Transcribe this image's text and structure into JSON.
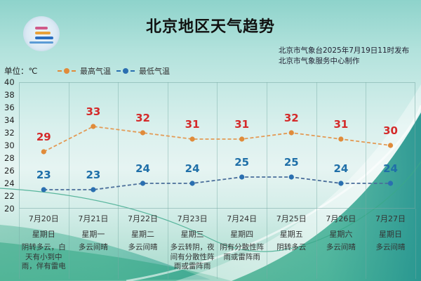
{
  "header": {
    "title": "北京地区天气趋势",
    "issuer_line1": "北京市气象台2025年7月19日11时发布",
    "issuer_line2": "北京市气象服务中心制作",
    "logo": "meteorological-service-logo"
  },
  "chart_meta": {
    "unit_label": "单位：℃",
    "legend": [
      {
        "name": "最高气温",
        "color": "#e08b3a"
      },
      {
        "name": "最低气温",
        "color": "#2a6fb0"
      }
    ],
    "y_ticks": [
      "40",
      "38",
      "36",
      "34",
      "32",
      "30",
      "28",
      "26",
      "24",
      "22",
      "20"
    ]
  },
  "days": [
    {
      "date": "7月20日",
      "weekday": "星期日",
      "weather": "阴转多云，白天有小到中雨，伴有雷电",
      "high": "29",
      "low": "23"
    },
    {
      "date": "7月21日",
      "weekday": "星期一",
      "weather": "多云间晴",
      "high": "33",
      "low": "23"
    },
    {
      "date": "7月22日",
      "weekday": "星期二",
      "weather": "多云间晴",
      "high": "32",
      "low": "24"
    },
    {
      "date": "7月23日",
      "weekday": "星期三",
      "weather": "多云转阴，夜间有分散性阵雨或雷阵雨",
      "high": "31",
      "low": "24"
    },
    {
      "date": "7月24日",
      "weekday": "星期四",
      "weather": "阴有分散性阵雨或雷阵雨",
      "high": "31",
      "low": "25"
    },
    {
      "date": "7月25日",
      "weekday": "星期五",
      "weather": "阴转多云",
      "high": "32",
      "low": "25"
    },
    {
      "date": "7月26日",
      "weekday": "星期六",
      "weather": "多云间晴",
      "high": "31",
      "low": "24"
    },
    {
      "date": "7月27日",
      "weekday": "星期日",
      "weather": "多云间晴",
      "high": "30",
      "low": "24"
    }
  ],
  "chart_data": {
    "type": "line",
    "title": "北京地区天气趋势",
    "categories": [
      "7月20日",
      "7月21日",
      "7月22日",
      "7月23日",
      "7月24日",
      "7月25日",
      "7月26日",
      "7月27日"
    ],
    "series": [
      {
        "name": "最高气温",
        "values": [
          29,
          33,
          32,
          31,
          31,
          32,
          31,
          30
        ],
        "color": "#e08b3a",
        "style": "dashed"
      },
      {
        "name": "最低气温",
        "values": [
          23,
          23,
          24,
          24,
          25,
          25,
          24,
          24
        ],
        "color": "#2a6fb0",
        "style": "dashed"
      }
    ],
    "xlabel": "",
    "ylabel": "单位：℃",
    "ylim": [
      20,
      40
    ],
    "y_ticks": [
      20,
      22,
      24,
      26,
      28,
      30,
      32,
      34,
      36,
      38,
      40
    ],
    "grid": true,
    "legend_position": "top-left",
    "data_labels": true
  }
}
